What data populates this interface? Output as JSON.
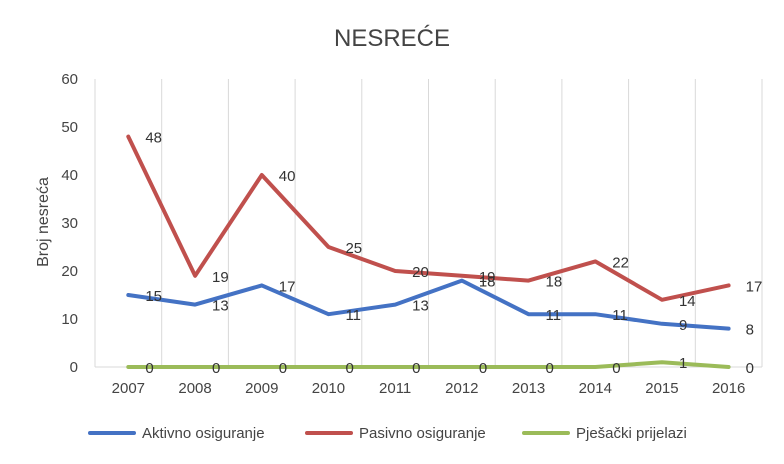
{
  "chart_data": {
    "type": "line",
    "title": "NESREĆE",
    "xlabel": "",
    "ylabel": "Broj nesreća",
    "ylim": [
      0,
      60
    ],
    "yticks": [
      0,
      10,
      20,
      30,
      40,
      50,
      60
    ],
    "grid": "vertical",
    "legend_position": "bottom",
    "categories": [
      "2007",
      "2008",
      "2009",
      "2010",
      "2011",
      "2012",
      "2013",
      "2014",
      "2015",
      "2016"
    ],
    "series": [
      {
        "name": "Aktivno osiguranje",
        "color": "#4472c4",
        "values": [
          15,
          13,
          17,
          11,
          13,
          18,
          11,
          11,
          9,
          8
        ]
      },
      {
        "name": "Pasivno osiguranje",
        "color": "#c0504d",
        "values": [
          48,
          19,
          40,
          25,
          20,
          19,
          18,
          22,
          14,
          17
        ]
      },
      {
        "name": "Pješački prijelazi",
        "color": "#9bbb59",
        "values": [
          0,
          0,
          0,
          0,
          0,
          0,
          0,
          0,
          1,
          0
        ]
      }
    ]
  }
}
